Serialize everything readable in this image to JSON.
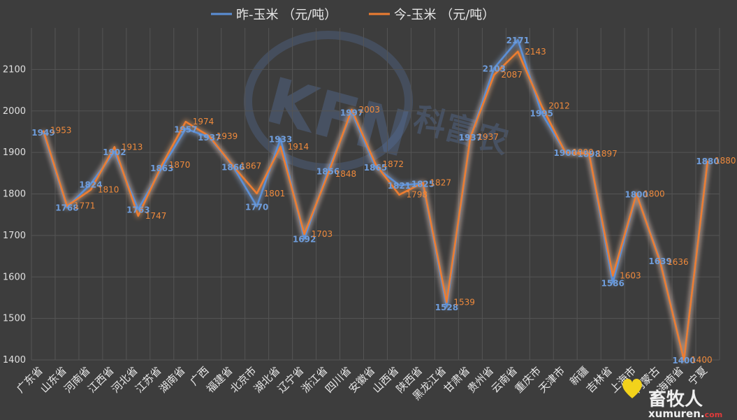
{
  "colors": {
    "yesterday": "#5b8fd6",
    "today": "#ed7d31",
    "background": "#3d3d3d",
    "grid": "#555555"
  },
  "watermark": {
    "letters": "KFN",
    "suffix": "科富农"
  },
  "logo": {
    "text": "畜牧人",
    "sub": "xumuren.",
    "sub_tail": "com"
  },
  "chart_data": {
    "type": "line",
    "title": "",
    "xlabel": "",
    "ylabel": "",
    "ylim": [
      1400,
      2200
    ],
    "yticks": [
      1400,
      1500,
      1600,
      1700,
      1800,
      1900,
      2000,
      2100
    ],
    "grid": true,
    "legend_position": "top",
    "categories": [
      "广东省",
      "山东省",
      "河南省",
      "江西省",
      "河北省",
      "江苏省",
      "湖南省",
      "广西",
      "福建省",
      "北京市",
      "湖北省",
      "辽宁省",
      "浙江省",
      "四川省",
      "安徽省",
      "山西省",
      "陕西省",
      "黑龙江省",
      "甘肃省",
      "贵州省",
      "云南省",
      "重庆市",
      "天津市",
      "新疆",
      "吉林省",
      "上海市",
      "内蒙古",
      "海南省",
      "宁夏"
    ],
    "series": [
      {
        "name": "昨-玉米   （元/吨）",
        "values": [
          1949,
          1768,
          1824,
          1902,
          1763,
          1863,
          1957,
          1937,
          1866,
          1770,
          1933,
          1692,
          1856,
          1997,
          1865,
          1821,
          1825,
          1528,
          1937,
          2103,
          2171,
          1995,
          1900,
          1898,
          1586,
          1800,
          1639,
          1400,
          1880
        ]
      },
      {
        "name": "今-玉米   （元/吨）",
        "values": [
          1953,
          1771,
          1810,
          1913,
          1747,
          1870,
          1974,
          1939,
          1867,
          1801,
          1914,
          1703,
          1848,
          2003,
          1872,
          1798,
          1827,
          1539,
          1937,
          2087,
          2143,
          2012,
          1900,
          1897,
          1603,
          1800,
          1636,
          1400,
          1880
        ]
      }
    ],
    "data_labels": {
      "yesterday": [
        "1949",
        "1768",
        "1824",
        "1902",
        "1763",
        "1863",
        "1957",
        "1937",
        "1866",
        "1770",
        "1933",
        "1692",
        "1856",
        "1997",
        "1865",
        "1821",
        "1825",
        "1528",
        "1937",
        "2103",
        "2171",
        "1995",
        "1900",
        "1898",
        "1586",
        "1800",
        "1639",
        "1400",
        "1880"
      ],
      "today": [
        "1953",
        "1771",
        "1810",
        "1913",
        "1747",
        "1870",
        "1974",
        "1939",
        "1867",
        "1801",
        "1914",
        "1703",
        "1848",
        "2003",
        "1872",
        "1798",
        "1827",
        "1539",
        "1937",
        "2087",
        "2143",
        "2012",
        "1900",
        "1897",
        "1603",
        "1800",
        "1636",
        "1400",
        "1880"
      ]
    }
  }
}
